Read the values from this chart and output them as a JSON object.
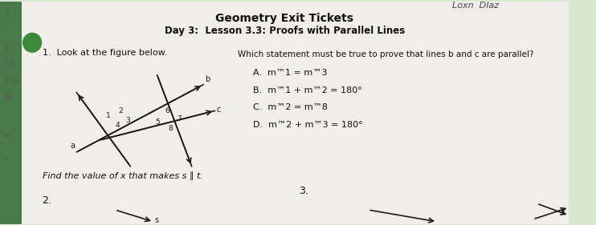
{
  "bg_color": "#d8e8d0",
  "paper_color": "#f0eeea",
  "title": "Geometry Exit Tickets",
  "subtitle": "Day 3:  Lesson 3.3: Proofs with Parallel Lines",
  "handwritten_top": "Loxn  Dlaz",
  "left_sidebar_color": "#4a7a4a",
  "green_circle_color": "#3a8a3a",
  "question1_label": "1.  Look at the figure below.",
  "question_right": "Which statement must be true to prove that lines b and c are parallel?",
  "answer_A": "A.  m™1 = m™3",
  "answer_B": "B.  m™1 + m™2 = 180°",
  "answer_C": "C.  m™2 = m™8",
  "answer_D": "D.  m™2 + m™3 = 180°",
  "bottom_label": "Find the value of x that makes s ∥ t.",
  "num2": "2.",
  "num3": "3.",
  "line_color": "#1a1a1a",
  "left_numbers": [
    "1",
    "1",
    "1 c",
    "1 p",
    "1 qu",
    "ga",
    "ou",
    "n"
  ],
  "figure_labels": {
    "a": "a",
    "b": "b",
    "c": "c",
    "nums": [
      "1",
      "2",
      "3",
      "4",
      "5",
      "6",
      "7",
      "8"
    ]
  }
}
